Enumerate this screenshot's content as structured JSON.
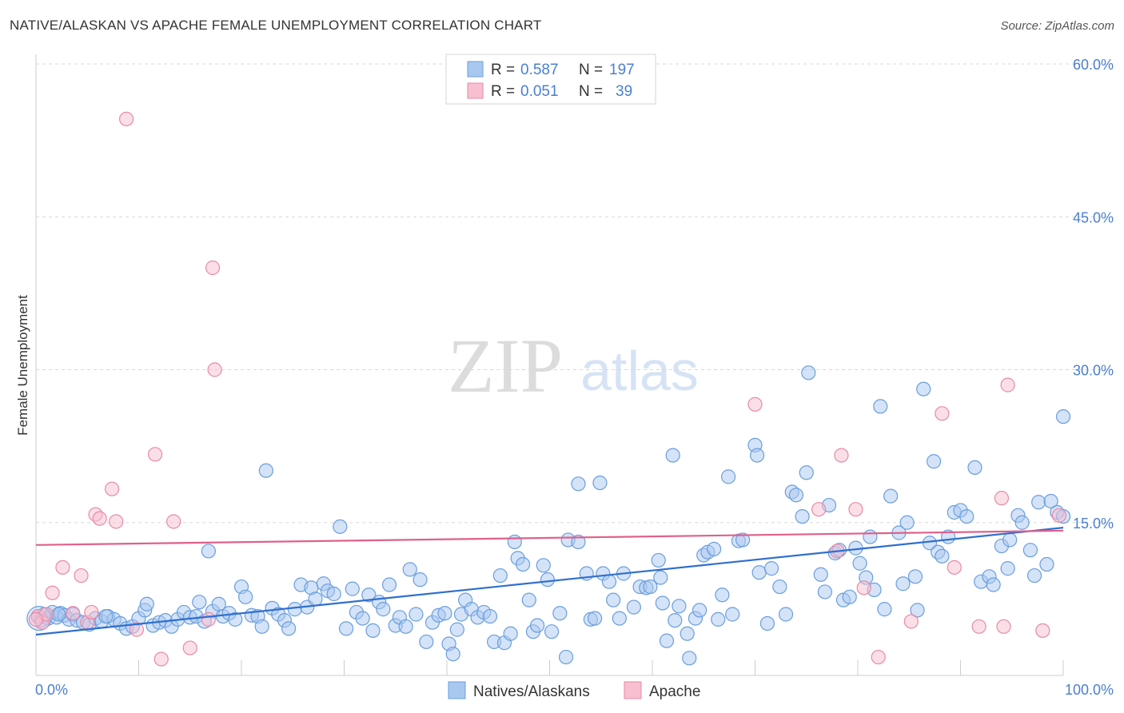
{
  "header": {
    "title": "NATIVE/ALASKAN VS APACHE FEMALE UNEMPLOYMENT CORRELATION CHART",
    "source": "Source: ZipAtlas.com"
  },
  "watermark": {
    "zip": "ZIP",
    "atlas": "atlas"
  },
  "legend_top": {
    "rows": [
      {
        "r_label": "R = ",
        "r_value": "0.587",
        "n_label": "N = ",
        "n_value": "197"
      },
      {
        "r_label": "R = ",
        "r_value": "0.051",
        "n_label": "N = ",
        "n_value": "39"
      }
    ]
  },
  "legend_bottom": {
    "items": [
      "Natives/Alaskans",
      "Apache"
    ]
  },
  "colors": {
    "blue_fill": "#a9c8f0",
    "blue_stroke": "#6a9ede",
    "blue_line": "#2f6fd0",
    "pink_fill": "#f7bfd0",
    "pink_stroke": "#e88aa8",
    "pink_line": "#e0608a",
    "tick_text": "#4a7fd0",
    "grid": "#d8d8d8"
  },
  "chart_data": {
    "type": "scatter",
    "title": "NATIVE/ALASKAN VS APACHE FEMALE UNEMPLOYMENT CORRELATION CHART",
    "xlabel": "",
    "ylabel": "Female Unemployment",
    "xlim": [
      0,
      100
    ],
    "ylim": [
      0,
      63
    ],
    "x_tick_labels": [
      "0.0%",
      "100.0%"
    ],
    "y_ticks": [
      15,
      30,
      45,
      60
    ],
    "y_tick_labels": [
      "15.0%",
      "30.0%",
      "45.0%",
      "60.0%"
    ],
    "grid": "horizontal dashed",
    "legend": "top-center",
    "series": [
      {
        "name": "Natives/Alaskans",
        "r": 0.587,
        "n": 197,
        "trend": [
          [
            0,
            4.0
          ],
          [
            100,
            14.5
          ]
        ],
        "points": [
          [
            0.2,
            5.8
          ],
          [
            0.5,
            5.4
          ],
          [
            0.8,
            6.0
          ],
          [
            1.2,
            5.6
          ],
          [
            1.6,
            6.2
          ],
          [
            2.0,
            5.7
          ],
          [
            2.4,
            6.1
          ],
          [
            2.8,
            5.9
          ],
          [
            3.2,
            5.5
          ],
          [
            3.6,
            6.0
          ],
          [
            4.0,
            5.4
          ],
          [
            4.6,
            5.2
          ],
          [
            5.2,
            5.0
          ],
          [
            5.8,
            5.6
          ],
          [
            6.4,
            5.3
          ],
          [
            7.0,
            5.8
          ],
          [
            7.6,
            5.5
          ],
          [
            8.2,
            5.1
          ],
          [
            8.8,
            4.6
          ],
          [
            9.4,
            4.8
          ],
          [
            10.0,
            5.6
          ],
          [
            10.6,
            6.4
          ],
          [
            10.8,
            7.0
          ],
          [
            11.4,
            4.9
          ],
          [
            12.0,
            5.2
          ],
          [
            12.6,
            5.4
          ],
          [
            13.2,
            4.8
          ],
          [
            13.8,
            5.5
          ],
          [
            14.4,
            6.2
          ],
          [
            15.0,
            5.7
          ],
          [
            15.6,
            5.8
          ],
          [
            15.9,
            7.2
          ],
          [
            16.4,
            5.3
          ],
          [
            16.8,
            12.2
          ],
          [
            17.2,
            6.3
          ],
          [
            17.8,
            7.0
          ],
          [
            18.2,
            5.8
          ],
          [
            18.8,
            6.1
          ],
          [
            19.4,
            5.5
          ],
          [
            20.0,
            8.7
          ],
          [
            20.4,
            7.7
          ],
          [
            21.0,
            5.9
          ],
          [
            21.6,
            5.8
          ],
          [
            22.0,
            4.8
          ],
          [
            22.4,
            20.1
          ],
          [
            23.0,
            6.6
          ],
          [
            23.6,
            6.0
          ],
          [
            24.2,
            5.4
          ],
          [
            24.6,
            4.6
          ],
          [
            25.2,
            6.5
          ],
          [
            25.8,
            8.9
          ],
          [
            26.4,
            6.7
          ],
          [
            26.8,
            8.6
          ],
          [
            27.2,
            7.5
          ],
          [
            28.0,
            9.0
          ],
          [
            28.4,
            8.3
          ],
          [
            29.0,
            8.0
          ],
          [
            29.6,
            14.6
          ],
          [
            30.2,
            4.6
          ],
          [
            30.8,
            8.5
          ],
          [
            31.2,
            6.2
          ],
          [
            31.8,
            5.6
          ],
          [
            32.4,
            7.9
          ],
          [
            32.8,
            4.4
          ],
          [
            33.4,
            7.2
          ],
          [
            33.8,
            6.5
          ],
          [
            34.4,
            8.9
          ],
          [
            35.0,
            4.9
          ],
          [
            35.4,
            5.7
          ],
          [
            36.0,
            4.8
          ],
          [
            36.4,
            10.4
          ],
          [
            37.0,
            6.0
          ],
          [
            37.4,
            9.4
          ],
          [
            38.0,
            3.3
          ],
          [
            38.6,
            5.2
          ],
          [
            39.2,
            5.9
          ],
          [
            39.8,
            6.1
          ],
          [
            40.2,
            3.1
          ],
          [
            40.6,
            2.1
          ],
          [
            41.0,
            4.5
          ],
          [
            41.4,
            6.0
          ],
          [
            41.8,
            7.4
          ],
          [
            42.4,
            6.5
          ],
          [
            43.0,
            5.7
          ],
          [
            43.6,
            6.2
          ],
          [
            44.2,
            5.8
          ],
          [
            44.6,
            3.3
          ],
          [
            45.2,
            9.8
          ],
          [
            45.6,
            3.2
          ],
          [
            46.2,
            4.1
          ],
          [
            46.6,
            13.1
          ],
          [
            46.9,
            11.5
          ],
          [
            47.4,
            10.9
          ],
          [
            48.0,
            7.4
          ],
          [
            48.4,
            4.3
          ],
          [
            48.8,
            4.9
          ],
          [
            49.4,
            10.8
          ],
          [
            49.8,
            9.4
          ],
          [
            50.2,
            4.3
          ],
          [
            51.0,
            6.1
          ],
          [
            51.6,
            1.8
          ],
          [
            51.8,
            13.3
          ],
          [
            52.8,
            13.1
          ],
          [
            52.8,
            18.8
          ],
          [
            53.6,
            10.0
          ],
          [
            54.0,
            5.5
          ],
          [
            54.4,
            5.6
          ],
          [
            54.9,
            18.9
          ],
          [
            55.2,
            10.0
          ],
          [
            55.8,
            9.2
          ],
          [
            56.2,
            7.4
          ],
          [
            56.8,
            5.6
          ],
          [
            57.2,
            10.0
          ],
          [
            58.2,
            6.7
          ],
          [
            58.8,
            8.7
          ],
          [
            59.4,
            8.6
          ],
          [
            59.8,
            8.7
          ],
          [
            60.6,
            11.3
          ],
          [
            60.8,
            9.6
          ],
          [
            61.0,
            7.1
          ],
          [
            61.4,
            3.4
          ],
          [
            62.0,
            21.6
          ],
          [
            62.2,
            5.4
          ],
          [
            62.6,
            6.8
          ],
          [
            63.4,
            4.1
          ],
          [
            63.6,
            1.7
          ],
          [
            64.2,
            5.6
          ],
          [
            64.6,
            6.4
          ],
          [
            65.0,
            11.8
          ],
          [
            65.4,
            12.1
          ],
          [
            66.0,
            12.4
          ],
          [
            66.4,
            5.5
          ],
          [
            66.8,
            7.9
          ],
          [
            67.4,
            19.5
          ],
          [
            67.8,
            6.0
          ],
          [
            68.4,
            13.2
          ],
          [
            68.8,
            13.3
          ],
          [
            70.0,
            22.6
          ],
          [
            70.2,
            21.6
          ],
          [
            70.4,
            10.1
          ],
          [
            71.2,
            5.1
          ],
          [
            71.6,
            10.5
          ],
          [
            72.4,
            8.7
          ],
          [
            73.0,
            6.0
          ],
          [
            73.6,
            18.0
          ],
          [
            74.0,
            17.7
          ],
          [
            74.6,
            15.6
          ],
          [
            75.0,
            19.9
          ],
          [
            75.2,
            29.7
          ],
          [
            76.4,
            9.9
          ],
          [
            76.8,
            8.2
          ],
          [
            77.2,
            16.7
          ],
          [
            77.8,
            12.0
          ],
          [
            78.2,
            12.3
          ],
          [
            78.6,
            7.4
          ],
          [
            79.2,
            7.7
          ],
          [
            79.8,
            12.5
          ],
          [
            80.2,
            11.0
          ],
          [
            80.8,
            9.6
          ],
          [
            81.2,
            13.6
          ],
          [
            81.6,
            8.4
          ],
          [
            82.2,
            26.4
          ],
          [
            82.6,
            6.5
          ],
          [
            83.2,
            17.6
          ],
          [
            84.0,
            14.0
          ],
          [
            84.4,
            9.0
          ],
          [
            84.8,
            15.0
          ],
          [
            85.6,
            9.7
          ],
          [
            85.8,
            6.4
          ],
          [
            86.4,
            28.1
          ],
          [
            87.0,
            13.0
          ],
          [
            87.4,
            21.0
          ],
          [
            87.8,
            12.1
          ],
          [
            88.2,
            11.7
          ],
          [
            88.8,
            13.6
          ],
          [
            89.4,
            16.0
          ],
          [
            90.0,
            16.2
          ],
          [
            90.6,
            15.6
          ],
          [
            91.4,
            20.4
          ],
          [
            92.0,
            9.2
          ],
          [
            92.8,
            9.7
          ],
          [
            93.2,
            8.9
          ],
          [
            94.0,
            12.7
          ],
          [
            94.6,
            10.5
          ],
          [
            94.8,
            13.3
          ],
          [
            95.6,
            15.7
          ],
          [
            96.0,
            15.0
          ],
          [
            96.8,
            12.3
          ],
          [
            97.2,
            9.8
          ],
          [
            97.6,
            17.0
          ],
          [
            98.4,
            10.9
          ],
          [
            98.8,
            17.1
          ],
          [
            99.4,
            16.0
          ],
          [
            100.0,
            25.4
          ],
          [
            100.0,
            15.6
          ],
          [
            2.2,
            6.0
          ],
          [
            6.8,
            5.8
          ]
        ]
      },
      {
        "name": "Apache",
        "r": 0.051,
        "n": 39,
        "trend": [
          [
            0,
            12.8
          ],
          [
            100,
            14.2
          ]
        ],
        "points": [
          [
            0.2,
            5.8
          ],
          [
            0.6,
            5.2
          ],
          [
            1.0,
            6.0
          ],
          [
            1.6,
            8.1
          ],
          [
            2.6,
            10.6
          ],
          [
            3.6,
            6.1
          ],
          [
            4.4,
            9.8
          ],
          [
            5.0,
            5.2
          ],
          [
            5.4,
            6.2
          ],
          [
            5.8,
            15.8
          ],
          [
            6.2,
            15.4
          ],
          [
            7.4,
            18.3
          ],
          [
            7.8,
            15.1
          ],
          [
            8.8,
            54.6
          ],
          [
            9.8,
            4.5
          ],
          [
            11.6,
            21.7
          ],
          [
            12.2,
            1.6
          ],
          [
            13.4,
            15.1
          ],
          [
            15.0,
            2.7
          ],
          [
            16.8,
            5.5
          ],
          [
            17.2,
            40.0
          ],
          [
            17.4,
            30.0
          ],
          [
            70.0,
            26.6
          ],
          [
            76.2,
            16.3
          ],
          [
            78.0,
            12.2
          ],
          [
            78.4,
            21.6
          ],
          [
            79.8,
            16.3
          ],
          [
            80.6,
            8.6
          ],
          [
            82.0,
            1.8
          ],
          [
            85.2,
            5.3
          ],
          [
            88.2,
            25.7
          ],
          [
            89.4,
            10.6
          ],
          [
            91.8,
            4.8
          ],
          [
            94.0,
            17.4
          ],
          [
            94.6,
            28.5
          ],
          [
            94.2,
            4.8
          ],
          [
            98.0,
            4.4
          ],
          [
            99.6,
            15.7
          ],
          [
            0.0,
            5.5
          ]
        ]
      }
    ]
  }
}
